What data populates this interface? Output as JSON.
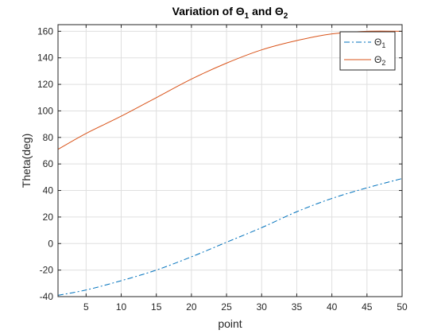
{
  "chart_data": {
    "type": "line",
    "title_parts": {
      "prefix": "Variation of ",
      "sym1": "Θ",
      "sub1": "1",
      "mid": " and ",
      "sym2": "Θ",
      "sub2": "2"
    },
    "xlabel": "point",
    "ylabel": "Theta(deg)",
    "xlim": [
      1,
      50
    ],
    "ylim": [
      -40,
      165
    ],
    "xticks": [
      5,
      10,
      15,
      20,
      25,
      30,
      35,
      40,
      45,
      50
    ],
    "yticks": [
      -40,
      -20,
      0,
      20,
      40,
      60,
      80,
      100,
      120,
      140,
      160
    ],
    "grid": true,
    "legend_position": "top-right",
    "series": [
      {
        "name": "Θ1",
        "symbol": "Θ",
        "subscript": "1",
        "color": "#0072BD",
        "line_style": "dash-dot",
        "x": [
          1,
          5,
          10,
          15,
          20,
          25,
          30,
          35,
          40,
          45,
          50
        ],
        "y": [
          -39,
          -35,
          -28,
          -20,
          -10,
          1,
          12,
          24,
          34,
          42,
          49
        ]
      },
      {
        "name": "Θ2",
        "symbol": "Θ",
        "subscript": "2",
        "color": "#D95319",
        "line_style": "solid",
        "x": [
          1,
          5,
          10,
          15,
          20,
          25,
          30,
          35,
          40,
          45,
          50
        ],
        "y": [
          71,
          83,
          96,
          110,
          124,
          136,
          146,
          153,
          158,
          160,
          160
        ]
      }
    ]
  }
}
